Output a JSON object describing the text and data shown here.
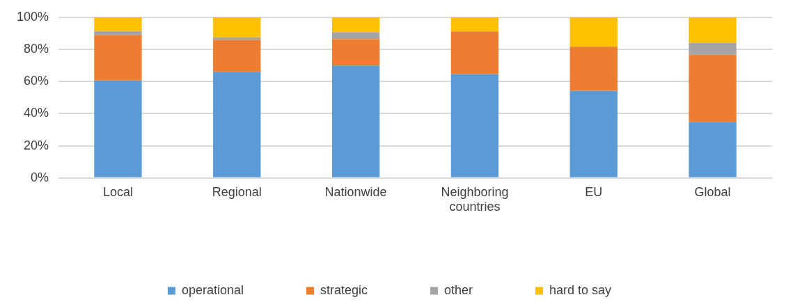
{
  "chart_data": {
    "type": "bar",
    "stacked": true,
    "categories": [
      "Local",
      "Regional",
      "Nationwide",
      "Neighboring countries",
      "EU",
      "Global"
    ],
    "series": [
      {
        "name": "operational",
        "color": "#5b9bd5",
        "values": [
          60.6,
          66.0,
          69.9,
          64.6,
          54.2,
          34.6
        ]
      },
      {
        "name": "strategic",
        "color": "#ed7d31",
        "values": [
          28.4,
          19.9,
          16.5,
          26.5,
          27.4,
          42.0
        ]
      },
      {
        "name": "other",
        "color": "#a5a5a5",
        "values": [
          2.4,
          1.6,
          4.3,
          0,
          0,
          7.5
        ]
      },
      {
        "name": "hard to say",
        "color": "#ffc000",
        "values": [
          8.6,
          12.5,
          9.3,
          8.9,
          18.4,
          15.9
        ]
      }
    ],
    "ylim": [
      0,
      100
    ],
    "yticks": [
      {
        "value": 0,
        "label": "0%"
      },
      {
        "value": 20,
        "label": "20%"
      },
      {
        "value": 40,
        "label": "40%"
      },
      {
        "value": 60,
        "label": "60%"
      },
      {
        "value": 80,
        "label": "80%"
      },
      {
        "value": 100,
        "label": "100%"
      }
    ],
    "grid": "y",
    "legend": "bottom"
  }
}
